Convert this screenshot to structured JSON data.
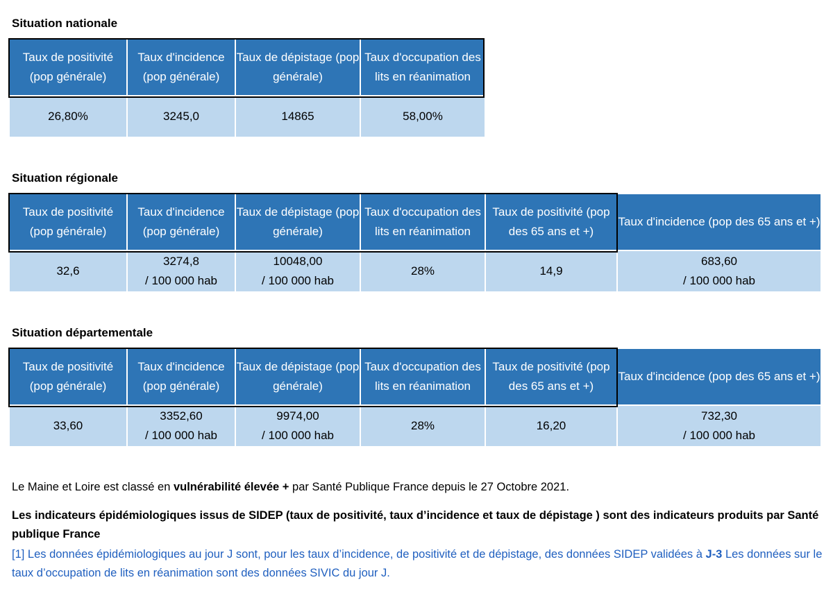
{
  "national": {
    "title": "Situation nationale",
    "headers": [
      "Taux de positivité (pop générale)",
      "Taux d'incidence (pop générale)",
      "Taux de dépistage (pop générale)",
      "Taux d'occupation des lits en réanimation"
    ],
    "values": [
      [
        "26,80%"
      ],
      [
        "3245,0"
      ],
      [
        "14865"
      ],
      [
        "58,00%"
      ]
    ]
  },
  "regional": {
    "title": "Situation régionale",
    "headers": [
      "Taux de positivité (pop générale)",
      "Taux d'incidence (pop générale)",
      "Taux de dépistage (pop générale)",
      "Taux d'occupation des lits en réanimation",
      "Taux de positivité (pop des 65 ans et +)",
      "Taux d'incidence (pop des 65 ans et +)"
    ],
    "values": [
      [
        "32,6"
      ],
      [
        "3274,8",
        "/ 100 000 hab"
      ],
      [
        "10048,00",
        "/ 100 000 hab"
      ],
      [
        "28%"
      ],
      [
        "14,9"
      ],
      [
        "683,60",
        "/ 100 000 hab"
      ]
    ]
  },
  "departmental": {
    "title": "Situation départementale",
    "headers": [
      "Taux de positivité (pop générale)",
      "Taux d'incidence (pop générale)",
      "Taux de dépistage (pop générale)",
      "Taux d'occupation des lits en réanimation",
      "Taux de positivité (pop des 65 ans et +)",
      "Taux d'incidence (pop des 65 ans et +)"
    ],
    "values": [
      [
        "33,60"
      ],
      [
        "3352,60",
        "/ 100 000 hab"
      ],
      [
        "9974,00",
        "/ 100 000 hab"
      ],
      [
        "28%"
      ],
      [
        "16,20"
      ],
      [
        "732,30",
        "/ 100 000 hab"
      ]
    ]
  },
  "notes": {
    "vulnerability_prefix": "Le Maine et Loire est classé en ",
    "vulnerability_bold": "vulnérabilité élevée +",
    "vulnerability_suffix": " par Santé Publique France depuis le 27 Octobre 2021.",
    "indicators_bold": "Les indicateurs épidémiologiques issus de SIDEP (taux de positivité, taux d’incidence et taux de dépistage ) sont des indicateurs produits par Santé publique France",
    "footnote_part1": "[1] Les données épidémiologiques au jour J sont, pour les taux d’incidence, de positivité et de dépistage, des données SIDEP validées à ",
    "footnote_bold": "J-3",
    "footnote_part2": " Les données sur le taux d’occupation de lits en réanimation sont des données SIVIC du jour J.",
    "colors": {
      "header_bg": "#2e75b6",
      "value_bg": "#bdd7ee",
      "footnote": "#1f5fbf"
    }
  }
}
